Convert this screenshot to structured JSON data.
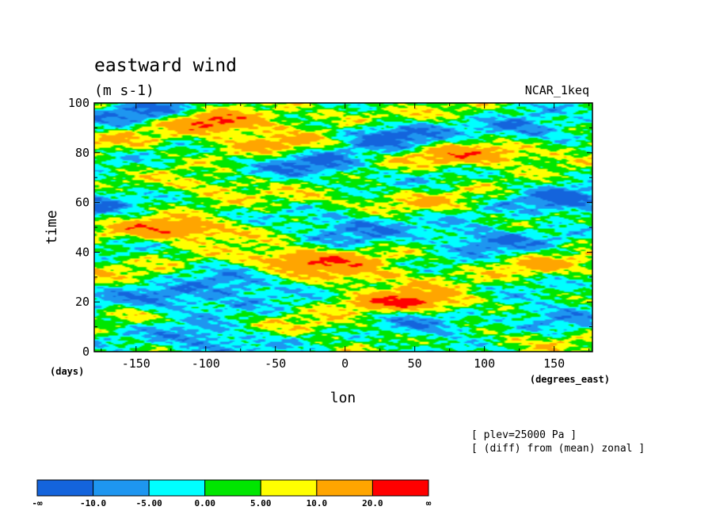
{
  "chart_data": {
    "type": "heatmap",
    "title": "eastward wind",
    "units": "(m s-1)",
    "experiment": "NCAR_1keq",
    "xlabel": "lon",
    "xunits": "(degrees_east)",
    "ylabel": "time",
    "yunits": "(days)",
    "xlim": [
      -180,
      177.5
    ],
    "ylim": [
      0,
      100
    ],
    "xticks": [
      -150,
      -100,
      -50,
      0,
      50,
      100,
      150
    ],
    "yticks": [
      0,
      20,
      40,
      60,
      80,
      100
    ],
    "notes": [
      "[ plev=25000 Pa ]",
      "[ (diff) from (mean) zonal ]"
    ],
    "colorbar": {
      "colors": [
        "#1464dc",
        "#1e96f0",
        "#00ffff",
        "#00e600",
        "#ffff00",
        "#ffa500",
        "#ff0000"
      ],
      "tick_labels": [
        "-∞",
        "-10.0",
        "-5.00",
        "0.00",
        "5.00",
        "10.0",
        "20.0",
        "∞"
      ]
    },
    "features": [
      {
        "lon": -95,
        "time": 92,
        "value": 22
      },
      {
        "lon": -120,
        "time": 49,
        "value": 21
      },
      {
        "lon": -30,
        "time": 37,
        "value": 21
      },
      {
        "lon": 50,
        "time": 20,
        "value": 21
      },
      {
        "lon": -85,
        "time": 67,
        "value": 15
      },
      {
        "lon": -50,
        "time": 84,
        "value": 12
      },
      {
        "lon": 80,
        "time": 78,
        "value": 12
      },
      {
        "lon": 120,
        "time": 80,
        "value": 10
      },
      {
        "lon": -40,
        "time": 62,
        "value": 12
      },
      {
        "lon": 20,
        "time": 30,
        "value": 12
      },
      {
        "lon": 140,
        "time": 35,
        "value": 10
      },
      {
        "lon": -10,
        "time": 10,
        "value": 8
      },
      {
        "lon": -150,
        "time": 15,
        "value": 8
      },
      {
        "lon": 60,
        "time": 60,
        "value": 8
      },
      {
        "lon": 130,
        "time": 5,
        "value": 8
      },
      {
        "lon": -160,
        "time": 85,
        "value": 8
      },
      {
        "lon": 0,
        "time": 95,
        "value": 8
      },
      {
        "lon": 100,
        "time": 95,
        "value": 6
      },
      {
        "lon": -140,
        "time": 30,
        "value": 6
      },
      {
        "lon": -140,
        "time": 95,
        "value": -12
      },
      {
        "lon": 30,
        "time": 87,
        "value": -13
      },
      {
        "lon": 130,
        "time": 90,
        "value": -12
      },
      {
        "lon": -130,
        "time": 20,
        "value": -12
      },
      {
        "lon": -80,
        "time": 27,
        "value": -11
      },
      {
        "lon": 160,
        "time": 60,
        "value": -12
      },
      {
        "lon": 0,
        "time": 50,
        "value": -10
      },
      {
        "lon": 100,
        "time": 45,
        "value": -11
      },
      {
        "lon": -100,
        "time": 5,
        "value": -11
      },
      {
        "lon": 60,
        "time": 10,
        "value": -10
      },
      {
        "lon": -60,
        "time": 65,
        "value": -11
      },
      {
        "lon": 150,
        "time": 15,
        "value": -9
      },
      {
        "lon": -20,
        "time": 75,
        "value": -10
      }
    ]
  }
}
